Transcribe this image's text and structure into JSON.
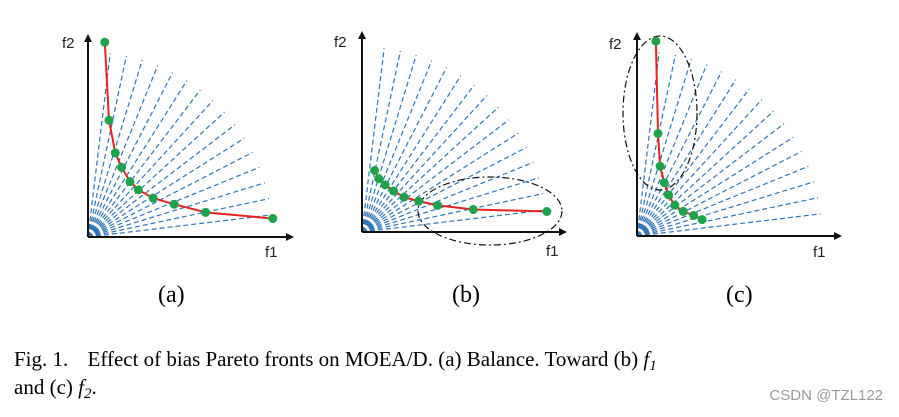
{
  "panels": [
    {
      "label": "(a)",
      "x_axis_label": "f1",
      "y_axis_label": "f2",
      "bias": "balanced",
      "front_points": [
        [
          0.08,
          0.95
        ],
        [
          0.1,
          0.57
        ],
        [
          0.13,
          0.41
        ],
        [
          0.16,
          0.34
        ],
        [
          0.2,
          0.27
        ],
        [
          0.24,
          0.23
        ],
        [
          0.31,
          0.19
        ],
        [
          0.41,
          0.16
        ],
        [
          0.56,
          0.12
        ],
        [
          0.88,
          0.09
        ]
      ]
    },
    {
      "label": "(b)",
      "x_axis_label": "f1",
      "y_axis_label": "f2",
      "bias": "toward f1",
      "front_points": [
        [
          0.06,
          0.3
        ],
        [
          0.08,
          0.26
        ],
        [
          0.11,
          0.23
        ],
        [
          0.15,
          0.2
        ],
        [
          0.2,
          0.17
        ],
        [
          0.27,
          0.15
        ],
        [
          0.36,
          0.13
        ],
        [
          0.53,
          0.11
        ],
        [
          0.88,
          0.1
        ]
      ]
    },
    {
      "label": "(c)",
      "x_axis_label": "f1",
      "y_axis_label": "f2",
      "bias": "toward f2",
      "front_points": [
        [
          0.09,
          0.95
        ],
        [
          0.1,
          0.5
        ],
        [
          0.11,
          0.34
        ],
        [
          0.13,
          0.26
        ],
        [
          0.15,
          0.2
        ],
        [
          0.18,
          0.15
        ],
        [
          0.22,
          0.12
        ],
        [
          0.27,
          0.1
        ],
        [
          0.31,
          0.08
        ]
      ]
    }
  ],
  "caption": {
    "number": "Fig. 1.",
    "text_before": "Effect of bias Pareto fronts on MOEA/D. (a) Balance. Toward (b)",
    "var1": "f",
    "var1_sub": "1",
    "and_c": "and (c)",
    "var2": "f",
    "var2_sub": "2",
    "end": "."
  },
  "watermark": "CSDN @TZL122",
  "colors": {
    "reference_vector": "#2e75b6",
    "front_line": "#e8231e",
    "front_point": "#1fa34a",
    "axis": "#111111"
  }
}
